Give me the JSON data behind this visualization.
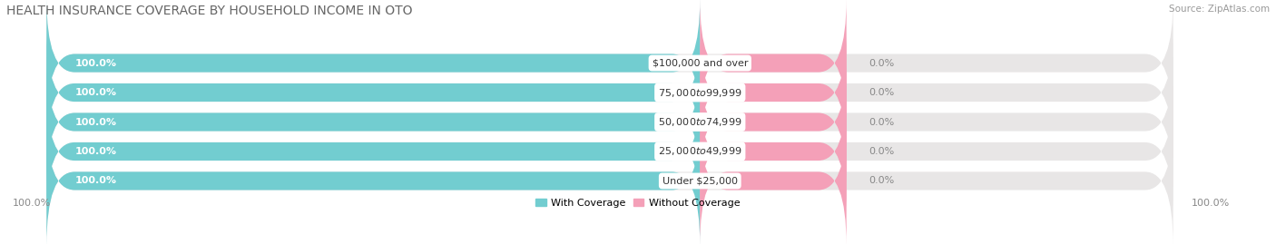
{
  "title": "HEALTH INSURANCE COVERAGE BY HOUSEHOLD INCOME IN OTO",
  "source": "Source: ZipAtlas.com",
  "categories": [
    "Under $25,000",
    "$25,000 to $49,999",
    "$50,000 to $74,999",
    "$75,000 to $99,999",
    "$100,000 and over"
  ],
  "with_coverage": [
    100.0,
    100.0,
    100.0,
    100.0,
    100.0
  ],
  "without_coverage": [
    0.0,
    0.0,
    0.0,
    0.0,
    0.0
  ],
  "color_with": "#72cdd0",
  "color_without": "#f4a0b8",
  "bar_bg_color": "#e8e6e6",
  "fig_bg_color": "#ffffff",
  "title_fontsize": 10,
  "source_fontsize": 7.5,
  "bar_label_fontsize": 8,
  "cat_label_fontsize": 8,
  "legend_fontsize": 8,
  "tick_fontsize": 8
}
